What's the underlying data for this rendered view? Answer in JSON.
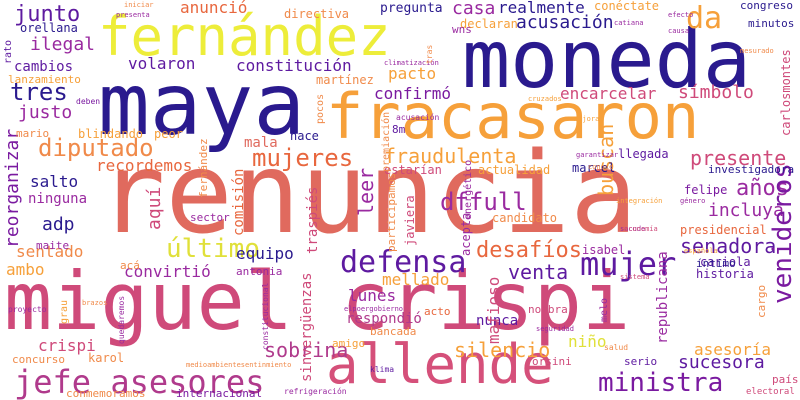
{
  "words": [
    {
      "text": "renuncia",
      "color": "#e06a5e"
    },
    {
      "text": "miguel crispi",
      "color": "#cf4a7a"
    },
    {
      "text": "maya",
      "color": "#2a1a8e"
    },
    {
      "text": "moneda",
      "color": "#2a1a8e"
    },
    {
      "text": "fracasaron",
      "color": "#f6a03a"
    },
    {
      "text": "fernández",
      "color": "#eded3a"
    },
    {
      "text": "allende",
      "color": "#d5507a"
    },
    {
      "text": "jefe asesores",
      "color": "#b03a8c"
    },
    {
      "text": "defensa",
      "color": "#5e1aa0"
    },
    {
      "text": "mujer",
      "color": "#5e1aa0"
    },
    {
      "text": "ministra",
      "color": "#7a1aa0"
    },
    {
      "text": "último",
      "color": "#e0e03a"
    },
    {
      "text": "diputado",
      "color": "#f08a4a"
    },
    {
      "text": "mujeres",
      "color": "#e8673e"
    },
    {
      "text": "fraudulenta",
      "color": "#f6a03a"
    },
    {
      "text": "dffull",
      "color": "#9a2aa0"
    },
    {
      "text": "desafíos",
      "color": "#e8673e"
    },
    {
      "text": "venta",
      "color": "#5e1aa0"
    },
    {
      "text": "sucesora",
      "color": "#5e1aa0"
    },
    {
      "text": "senadora",
      "color": "#5e1aa0"
    },
    {
      "text": "sobrina",
      "color": "#b03a8c"
    },
    {
      "text": "asesoría",
      "color": "#f6a03a"
    },
    {
      "text": "silencio",
      "color": "#f6a03a"
    },
    {
      "text": "años",
      "color": "#9a2aa0"
    },
    {
      "text": "presente",
      "color": "#cf4a7a"
    },
    {
      "text": "incluya",
      "color": "#9a2aa0"
    },
    {
      "text": "junto",
      "color": "#5e1aa0"
    },
    {
      "text": "ilegal",
      "color": "#9a2aa0"
    },
    {
      "text": "tres",
      "color": "#2a1a8e"
    },
    {
      "text": "justo",
      "color": "#9a2aa0"
    },
    {
      "text": "cambios",
      "color": "#5e1aa0"
    },
    {
      "text": "volaron",
      "color": "#5e1aa0"
    },
    {
      "text": "constitución",
      "color": "#5e1aa0"
    },
    {
      "text": "pacto",
      "color": "#f6a03a"
    },
    {
      "text": "confirmó",
      "color": "#7a1aa0"
    },
    {
      "text": "encarcelar",
      "color": "#cf4a7a"
    },
    {
      "text": "símbolo",
      "color": "#cf4a7a"
    },
    {
      "text": "acusación",
      "color": "#2a1a8e"
    },
    {
      "text": "casa",
      "color": "#9a2aa0"
    },
    {
      "text": "realmente",
      "color": "#2a1a8e"
    },
    {
      "text": "da",
      "color": "#f6a03a"
    },
    {
      "text": "anunció",
      "color": "#e8673e"
    },
    {
      "text": "salto",
      "color": "#2a1a8e"
    },
    {
      "text": "ninguna",
      "color": "#9a2aa0"
    },
    {
      "text": "adp",
      "color": "#2a1a8e"
    },
    {
      "text": "sentado",
      "color": "#f08a4a"
    },
    {
      "text": "ambo",
      "color": "#f6a03a"
    },
    {
      "text": "convirtió",
      "color": "#9a2aa0"
    },
    {
      "text": "equipo",
      "color": "#2a1a8e"
    },
    {
      "text": "mala",
      "color": "#e06a5e"
    },
    {
      "text": "recordemos",
      "color": "#e8673e"
    },
    {
      "text": "lunes",
      "color": "#9a2aa0"
    },
    {
      "text": "mellado",
      "color": "#f6a03a"
    },
    {
      "text": "respondió",
      "color": "#b03a8c"
    },
    {
      "text": "nunca",
      "color": "#5e1aa0"
    },
    {
      "text": "niño",
      "color": "#e0e03a"
    },
    {
      "text": "crispi",
      "color": "#cf4a7a"
    },
    {
      "text": "leer",
      "color": "#9a2aa0"
    },
    {
      "text": "buscan",
      "color": "#f6a03a"
    },
    {
      "text": "reorganizar",
      "color": "#7a1aa0"
    },
    {
      "text": "aquí",
      "color": "#cf4a7a"
    },
    {
      "text": "venideros",
      "color": "#7a1aa0"
    },
    {
      "text": "mafioso",
      "color": "#cf4a7a"
    },
    {
      "text": "sinvergüenzas",
      "color": "#cf4a7a"
    },
    {
      "text": "republicana",
      "color": "#9a2aa0"
    },
    {
      "text": "comisión",
      "color": "#e8673e"
    },
    {
      "text": "candidato",
      "color": "#f08a4a"
    },
    {
      "text": "isabel",
      "color": "#9a2aa0"
    },
    {
      "text": "cariola",
      "color": "#5e1aa0"
    },
    {
      "text": "historia",
      "color": "#5e1aa0"
    },
    {
      "text": "presidencial",
      "color": "#e8673e"
    },
    {
      "text": "felipe",
      "color": "#7a1aa0"
    },
    {
      "text": "marcel",
      "color": "#2a1a8e"
    },
    {
      "text": "actualidad",
      "color": "#f6a03a"
    },
    {
      "text": "estarían",
      "color": "#cf4a7a"
    },
    {
      "text": "llegada",
      "color": "#5e1aa0"
    },
    {
      "text": "investigadora",
      "color": "#2a1a8e"
    },
    {
      "text": "íntimo",
      "color": "#2a1a8e"
    },
    {
      "text": "congreso",
      "color": "#2a1a8e"
    },
    {
      "text": "minutos",
      "color": "#2a1a8e"
    },
    {
      "text": "pregunta",
      "color": "#2a1a8e"
    },
    {
      "text": "conéctate",
      "color": "#f6a03a"
    },
    {
      "text": "directiva",
      "color": "#f08a4a"
    },
    {
      "text": "declaran",
      "color": "#f6a03a"
    },
    {
      "text": "orellana",
      "color": "#2a1a8e"
    },
    {
      "text": "wns",
      "color": "#9a2aa0"
    },
    {
      "text": "martínez",
      "color": "#f08a4a"
    },
    {
      "text": "lanzamiento",
      "color": "#f6a03a"
    },
    {
      "text": "blindando",
      "color": "#f6a03a"
    },
    {
      "text": "peor",
      "color": "#f6a03a"
    },
    {
      "text": "hace",
      "color": "#2a1a8e"
    },
    {
      "text": "mario",
      "color": "#f08a4a"
    },
    {
      "text": "8m",
      "color": "#5e1aa0"
    },
    {
      "text": "maite",
      "color": "#9a2aa0"
    },
    {
      "text": "sector",
      "color": "#9a2aa0"
    },
    {
      "text": "traspiés",
      "color": "#cf4a7a"
    },
    {
      "text": "participamos",
      "color": "#f08a4a"
    },
    {
      "text": "javiera",
      "color": "#cf4a7a"
    },
    {
      "text": "acepta",
      "color": "#9a2aa0"
    },
    {
      "text": "antonia",
      "color": "#9a2aa0"
    },
    {
      "text": "acá",
      "color": "#f08a4a"
    },
    {
      "text": "karol",
      "color": "#f08a4a"
    },
    {
      "text": "concurso",
      "color": "#f08a4a"
    },
    {
      "text": "amigo",
      "color": "#f6a03a"
    },
    {
      "text": "bancada",
      "color": "#f08a4a"
    },
    {
      "text": "acto",
      "color": "#e8673e"
    },
    {
      "text": "nombra",
      "color": "#cf4a7a"
    },
    {
      "text": "orsini",
      "color": "#cf4a7a"
    },
    {
      "text": "serio",
      "color": "#5e1aa0"
    },
    {
      "text": "cargo",
      "color": "#f08a4a"
    },
    {
      "text": "país",
      "color": "#cf4a7a"
    },
    {
      "text": "internacional",
      "color": "#7a1aa0"
    },
    {
      "text": "conmemoramos",
      "color": "#f08a4a"
    },
    {
      "text": "refrigeración",
      "color": "#9a2aa0"
    },
    {
      "text": "carlosmontes",
      "color": "#cf4a7a"
    },
    {
      "text": "electoral",
      "color": "#cf4a7a"
    },
    {
      "text": "premiación",
      "color": "#f08a4a"
    },
    {
      "text": "fernández",
      "color": "#f08a4a"
    },
    {
      "text": "energético",
      "color": "#9a2aa0"
    },
    {
      "text": "klima",
      "color": "#5e1aa0"
    },
    {
      "text": "salud",
      "color": "#f08a4a"
    },
    {
      "text": "grau",
      "color": "#f6a03a"
    },
    {
      "text": "rato",
      "color": "#5e1aa0"
    },
    {
      "text": "proyecto",
      "color": "#9a2aa0"
    },
    {
      "text": "deben",
      "color": "#7a1aa0"
    },
    {
      "text": "brazos",
      "color": "#f08a4a"
    },
    {
      "text": "quedaremos",
      "color": "#9a2aa0"
    },
    {
      "text": "constitucional",
      "color": "#9a2aa0"
    },
    {
      "text": "medioambientesentinmiento",
      "color": "#f08a4a"
    },
    {
      "text": "climatización",
      "color": "#9a2aa0"
    },
    {
      "text": "pocos",
      "color": "#f08a4a"
    },
    {
      "text": "acusación",
      "color": "#9a2aa0"
    },
    {
      "text": "cruzados",
      "color": "#f6a03a"
    },
    {
      "text": "sacude",
      "color": "#9a2aa0"
    },
    {
      "text": "garantizar",
      "color": "#9a2aa0"
    },
    {
      "text": "género",
      "color": "#9a2aa0"
    },
    {
      "text": "integración",
      "color": "#f6a03a"
    },
    {
      "text": "economía",
      "color": "#cf4a7a"
    },
    {
      "text": "sistema",
      "color": "#cf4a7a"
    },
    {
      "text": "seguridad",
      "color": "#9a2aa0"
    },
    {
      "text": "elpoergobierno",
      "color": "#9a2aa0"
    },
    {
      "text": "iniciar",
      "color": "#f08a4a"
    },
    {
      "text": "presenta",
      "color": "#9a2aa0"
    },
    {
      "text": "efecto",
      "color": "#9a2aa0"
    },
    {
      "text": "catiana",
      "color": "#9a2aa0"
    },
    {
      "text": "causa",
      "color": "#9a2aa0"
    },
    {
      "text": "tras",
      "color": "#f08a4a"
    },
    {
      "text": "mesurado",
      "color": "#f08a4a"
    },
    {
      "text": "española",
      "color": "#f6a03a"
    },
    {
      "text": "mejorar",
      "color": "#f6a03a"
    },
    {
      "text": "conoce",
      "color": "#f08a4a"
    },
    {
      "text": "melo",
      "color": "#9a2aa0"
    }
  ]
}
